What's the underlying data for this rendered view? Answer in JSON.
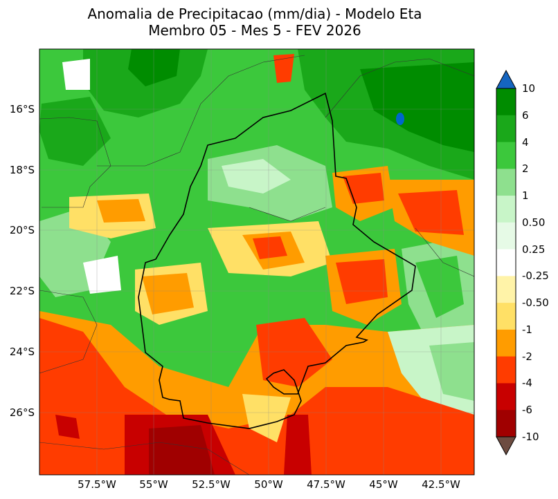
{
  "title": {
    "line1": "Anomalia de Precipitacao (mm/dia) - Modelo Eta",
    "line2": "Membro 05 - Mes 5 - FEV 2026"
  },
  "axes": {
    "y_ticks": [
      "16°S",
      "18°S",
      "20°S",
      "22°S",
      "24°S",
      "26°S"
    ],
    "x_ticks": [
      "57.5°W",
      "55°W",
      "52.5°W",
      "50°W",
      "47.5°W",
      "45°W",
      "42.5°W"
    ]
  },
  "colorbar": {
    "labels": [
      "10",
      "6",
      "4",
      "2",
      "1",
      "0.50",
      "0.25",
      "-0.25",
      "-0.50",
      "-1",
      "-2",
      "-4",
      "-6",
      "-10"
    ],
    "colors": [
      "#0066cc",
      "#008c00",
      "#1aa81a",
      "#3cc83c",
      "#8ee08e",
      "#c8f5c8",
      "#e6fae6",
      "#ffffff",
      "#fff3a8",
      "#ffe066",
      "#ff9c00",
      "#ff3c00",
      "#c80000",
      "#a00000",
      "#6e4632"
    ],
    "over_color": "#1565c0",
    "under_color": "#6d4c41"
  }
}
